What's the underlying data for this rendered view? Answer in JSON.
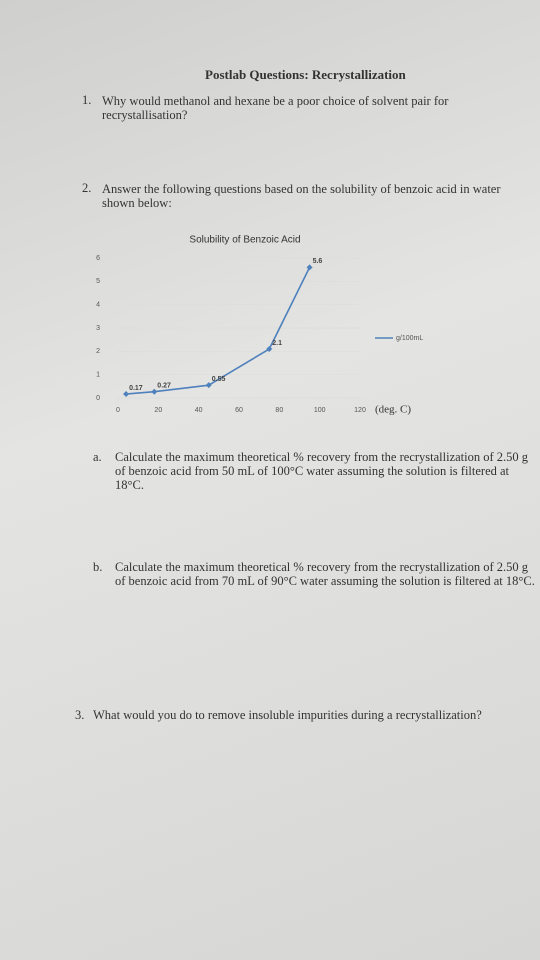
{
  "header": {
    "title": "Postlab Questions: Recrystallization"
  },
  "questions": [
    {
      "number": "1.",
      "text": "Why would methanol and hexane be a poor choice of solvent pair for recrystallisation?"
    },
    {
      "number": "2.",
      "text": "Answer the following questions based on the solubility of benzoic acid in water shown below:",
      "parts": [
        {
          "number": "a.",
          "text": "Calculate the maximum theoretical % recovery from the recrystallization of 2.50 g of benzoic acid from 50 mL of 100°C water assuming the solution is filtered at 18°C."
        },
        {
          "number": "b.",
          "text": "Calculate the maximum theoretical % recovery from the recrystallization of 2.50 g of benzoic acid from 70 mL of 90°C water assuming the solution is filtered at 18°C."
        }
      ]
    },
    {
      "number": "3.",
      "text": "What would you do to remove insoluble impurities during a recrystallization?"
    }
  ],
  "chart_data": {
    "type": "line",
    "title": "Solubility of Benzoic Acid",
    "x_label": "(deg. C)",
    "x": [
      4,
      18,
      45,
      75,
      95
    ],
    "series": [
      {
        "name": "g/100mL",
        "color": "#4f81bd",
        "values": [
          0.17,
          0.27,
          0.55,
          2.1,
          5.6
        ]
      }
    ],
    "xlim": [
      0,
      120
    ],
    "xticks": [
      0,
      20,
      40,
      60,
      80,
      100,
      120
    ],
    "ylim": [
      0,
      6
    ],
    "yticks": [
      0,
      1,
      2,
      3,
      4,
      5,
      6
    ],
    "grid": true,
    "legend": "right"
  }
}
